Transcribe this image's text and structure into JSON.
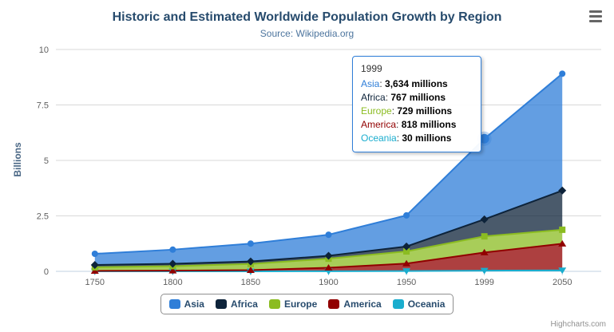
{
  "chart": {
    "title": "Historic and Estimated Worldwide Population Growth by Region",
    "subtitle": "Source: Wikipedia.org",
    "y_axis_title": "Billions",
    "credits": "Highcharts.com"
  },
  "chart_data": {
    "type": "area",
    "stacking": "normal",
    "title": "Historic and Estimated Worldwide Population Growth by Region",
    "subtitle": "Source: Wikipedia.org",
    "xlabel": "",
    "ylabel": "Billions",
    "unit": "millions",
    "ylim": [
      0,
      10
    ],
    "y_ticks": [
      0,
      2.5,
      5,
      7.5,
      10
    ],
    "grid": true,
    "legend_position": "bottom",
    "categories": [
      "1750",
      "1800",
      "1850",
      "1900",
      "1950",
      "1999",
      "2050"
    ],
    "series": [
      {
        "name": "Asia",
        "color": "#2f7ed8",
        "marker": "circle",
        "values": [
          502,
          635,
          809,
          947,
          1402,
          3634,
          5268
        ]
      },
      {
        "name": "Africa",
        "color": "#0d233a",
        "marker": "diamond",
        "values": [
          106,
          107,
          111,
          133,
          221,
          767,
          1766
        ]
      },
      {
        "name": "Europe",
        "color": "#8bbc21",
        "marker": "square",
        "values": [
          163,
          203,
          276,
          408,
          547,
          729,
          628
        ]
      },
      {
        "name": "America",
        "color": "#910000",
        "marker": "triangle",
        "values": [
          18,
          31,
          54,
          156,
          339,
          818,
          1201
        ]
      },
      {
        "name": "Oceania",
        "color": "#1aadce",
        "marker": "triangle-down",
        "values": [
          2,
          2,
          2,
          6,
          13,
          30,
          46
        ]
      }
    ]
  },
  "tooltip": {
    "header": "1999",
    "hovered_series": "Asia",
    "hovered_category": "1999",
    "rows": [
      {
        "series": "Asia",
        "value": "3,634 millions"
      },
      {
        "series": "Africa",
        "value": "767 millions"
      },
      {
        "series": "Europe",
        "value": "729 millions"
      },
      {
        "series": "America",
        "value": "818 millions"
      },
      {
        "series": "Oceania",
        "value": "30 millions"
      }
    ]
  }
}
